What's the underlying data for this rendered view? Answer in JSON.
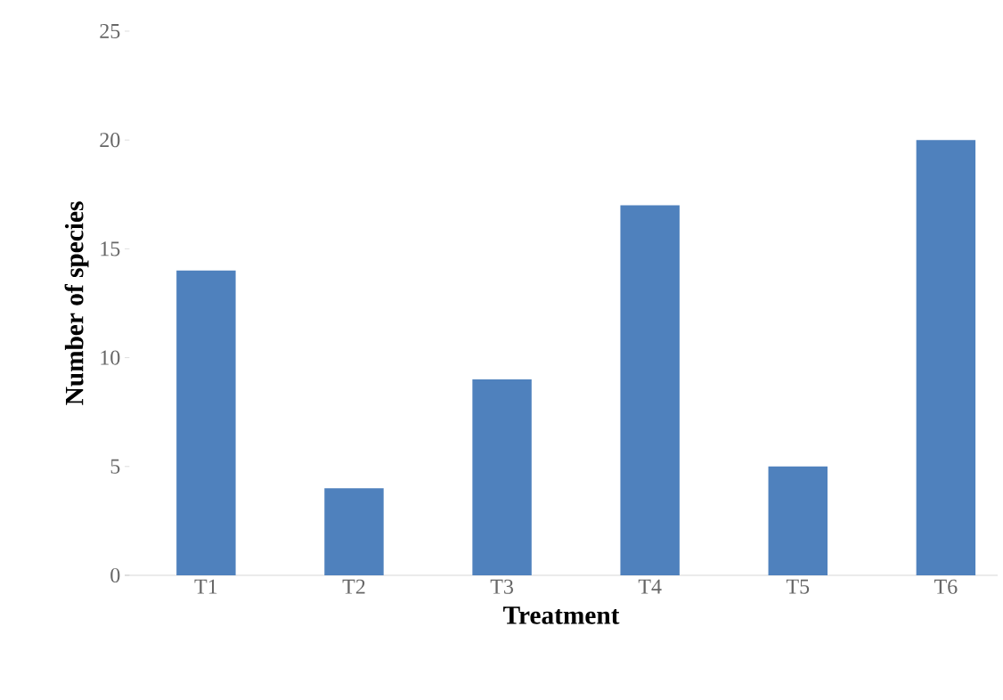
{
  "chart_data": {
    "type": "bar",
    "xlabel": "Treatment",
    "ylabel": "Number of species",
    "categories": [
      "T1",
      "T2",
      "T3",
      "T4",
      "T5",
      "T6"
    ],
    "values": [
      14,
      4,
      9,
      17,
      5,
      20
    ],
    "color": "#4f81bd",
    "ylim": [
      0,
      25
    ],
    "yticks": [
      0,
      5,
      10,
      15,
      20,
      25
    ],
    "grid": false
  }
}
